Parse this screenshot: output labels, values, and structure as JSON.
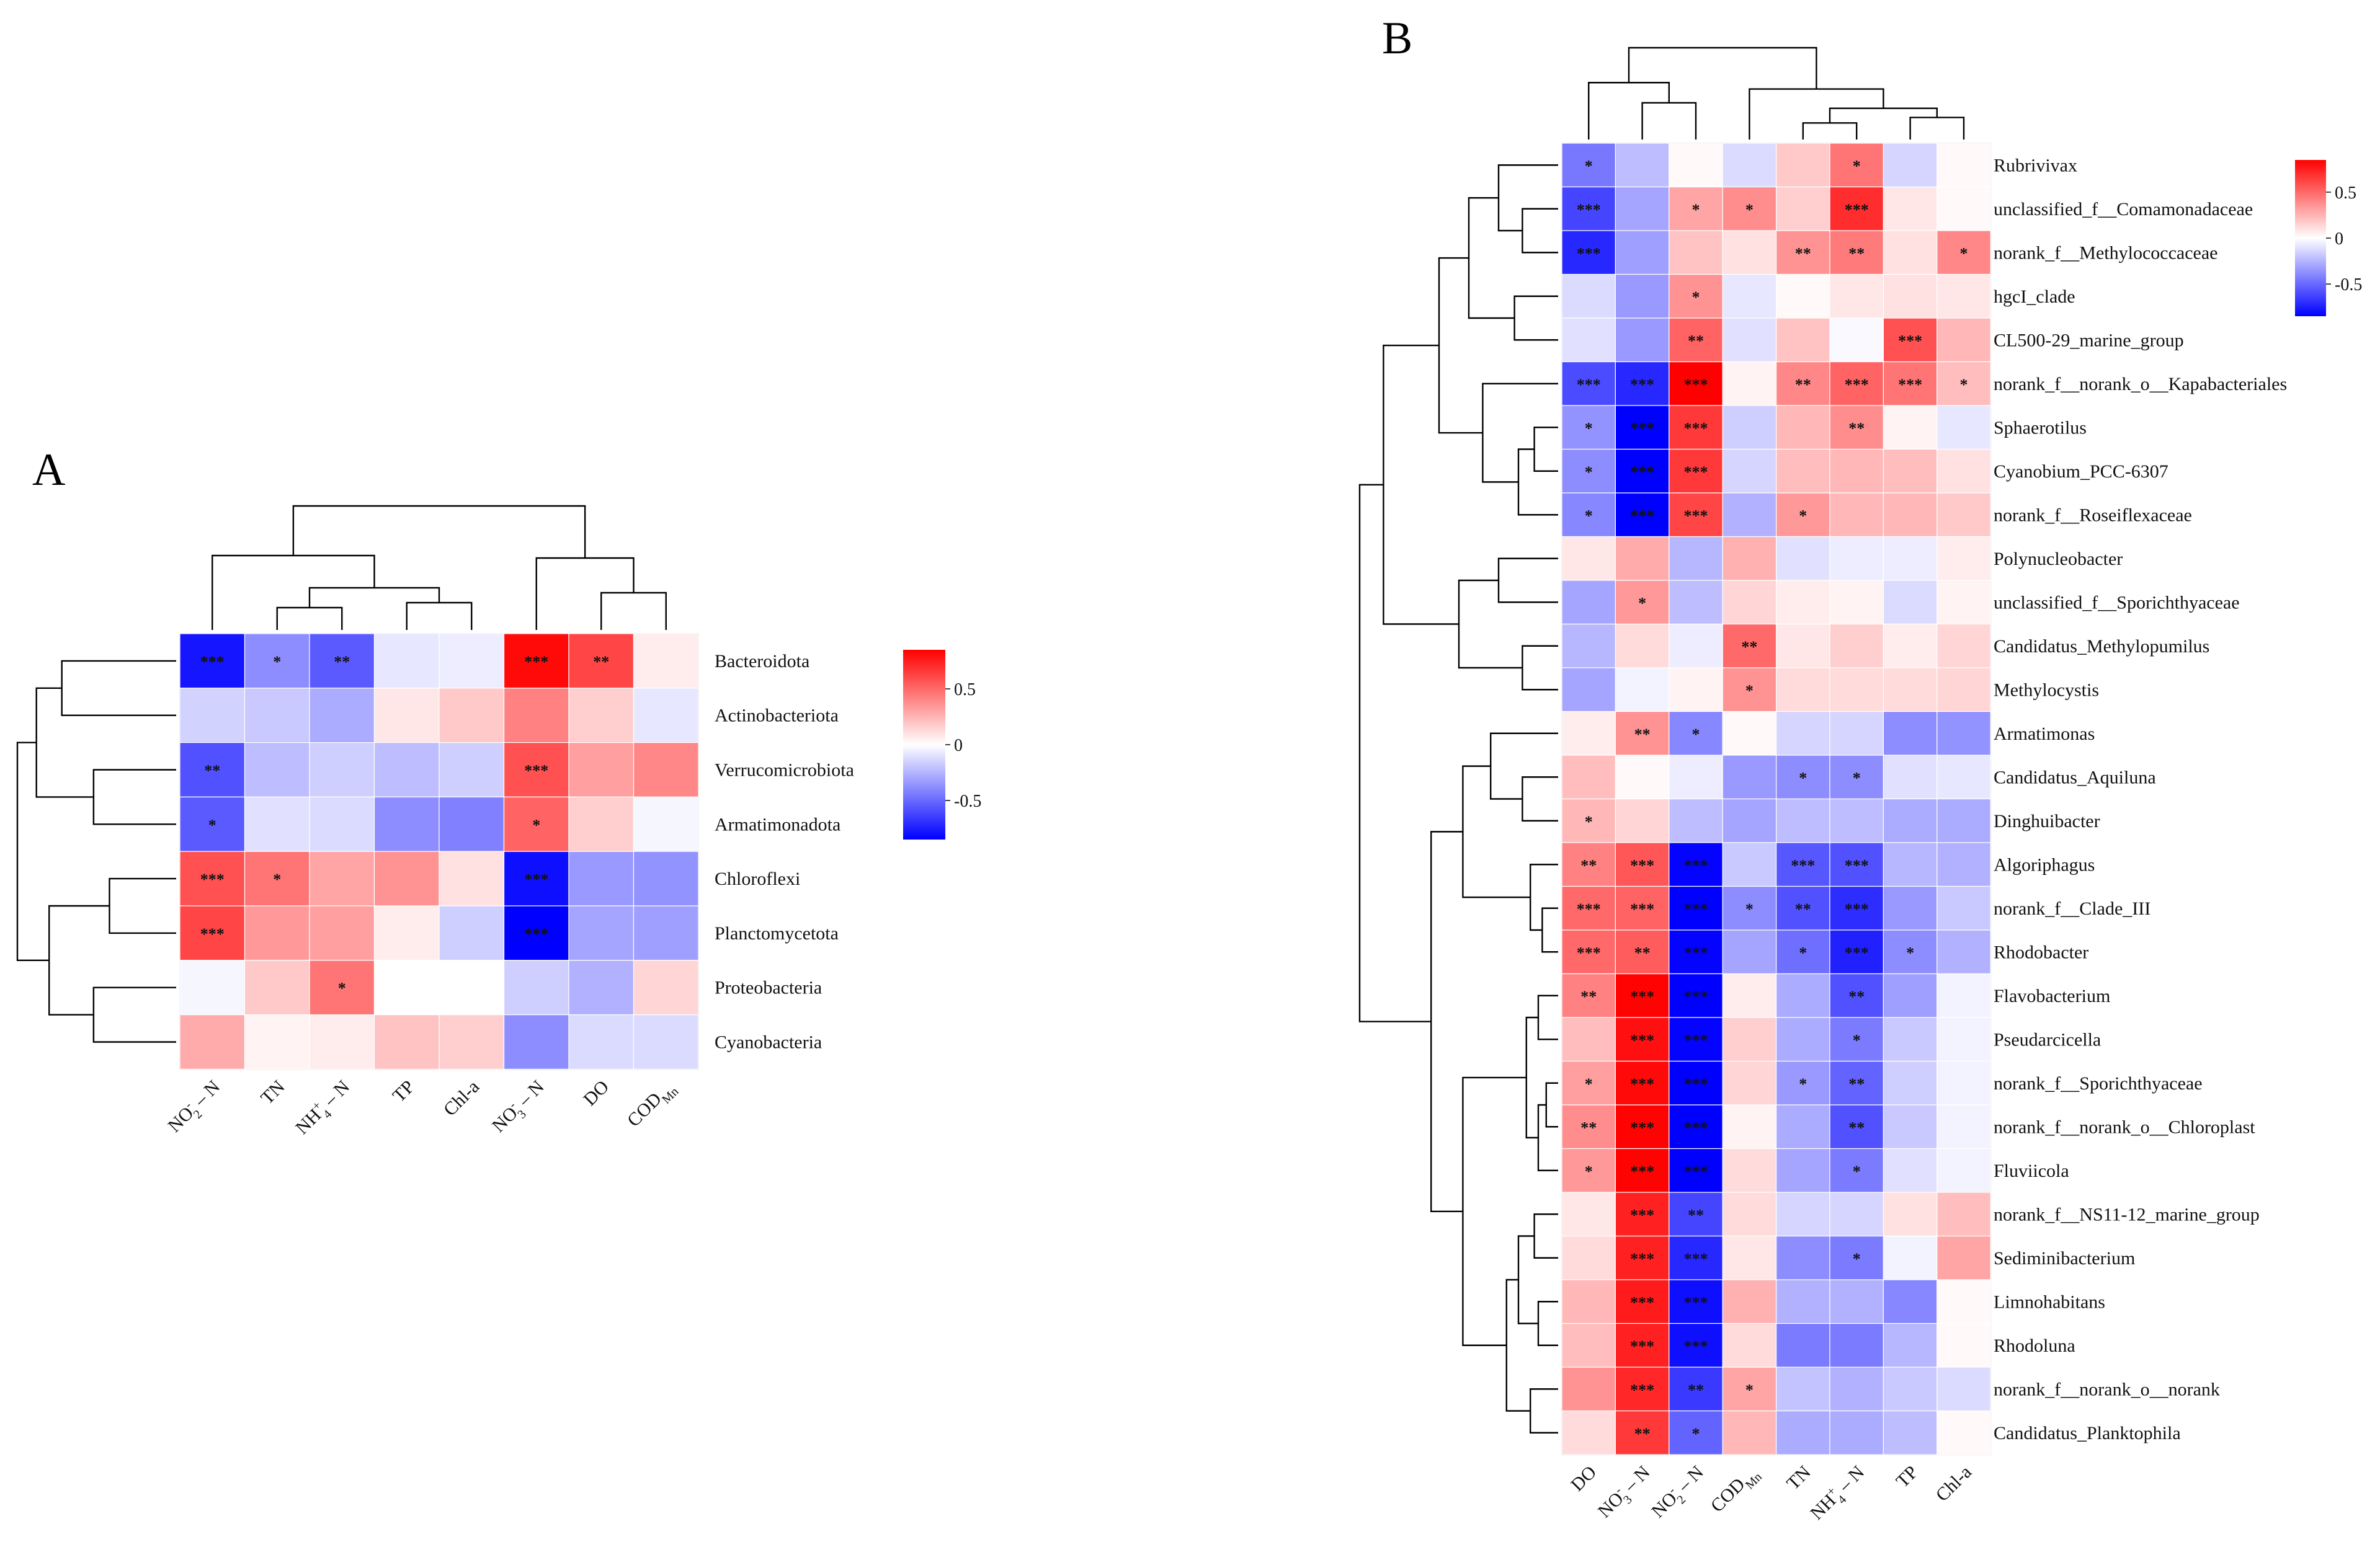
{
  "colors": {
    "low": "#0000ff",
    "mid": "#ffffff",
    "high": "#ff0000",
    "frame": "#d9d9d9"
  },
  "chart_data": [
    {
      "type": "heatmap",
      "panel": "A",
      "title": "",
      "rows": [
        "Bacteroidota",
        "Actinobacteriota",
        "Verrucomicrobiota",
        "Armatimonadota",
        "Chloroflexi",
        "Planctomycetota",
        "Proteobacteria",
        "Cyanobacteria"
      ],
      "columns": [
        {
          "main": "NO",
          "sub": "2",
          "sup": "-",
          "tail": "- N"
        },
        {
          "main": "TN"
        },
        {
          "main": "NH",
          "sub": "4",
          "sup": "+",
          "tail": "- N"
        },
        {
          "main": "TP"
        },
        {
          "main": "Chl-a"
        },
        {
          "main": "NO",
          "sub": "3",
          "sup": "-",
          "tail": "- N"
        },
        {
          "main": "DO"
        },
        {
          "main": "COD",
          "sub": "Mn"
        }
      ],
      "values": [
        [
          -0.78,
          -0.38,
          -0.55,
          -0.08,
          -0.06,
          0.82,
          0.62,
          0.06
        ],
        [
          -0.15,
          -0.18,
          -0.28,
          0.08,
          0.18,
          0.42,
          0.16,
          -0.08
        ],
        [
          -0.58,
          -0.22,
          -0.16,
          -0.22,
          -0.16,
          0.58,
          0.32,
          0.4
        ],
        [
          -0.55,
          -0.1,
          -0.12,
          -0.38,
          -0.42,
          0.52,
          0.16,
          -0.03
        ],
        [
          0.58,
          0.46,
          0.3,
          0.36,
          0.1,
          -0.8,
          -0.34,
          -0.36
        ],
        [
          0.62,
          0.34,
          0.32,
          0.06,
          -0.16,
          -0.86,
          -0.3,
          -0.32
        ],
        [
          -0.03,
          0.18,
          0.46,
          0.0,
          0.0,
          -0.16,
          -0.26,
          0.14
        ],
        [
          0.28,
          0.04,
          0.06,
          0.2,
          0.16,
          -0.38,
          -0.12,
          -0.12
        ]
      ],
      "stars": [
        [
          "***",
          "*",
          "**",
          "",
          "",
          "***",
          "**",
          ""
        ],
        [
          "",
          "",
          "",
          "",
          "",
          "",
          "",
          ""
        ],
        [
          "**",
          "",
          "",
          "",
          "",
          "***",
          "",
          ""
        ],
        [
          "*",
          "",
          "",
          "",
          "",
          "*",
          "",
          ""
        ],
        [
          "***",
          "*",
          "",
          "",
          "",
          "***",
          "",
          ""
        ],
        [
          "***",
          "",
          "",
          "",
          "",
          "***",
          "",
          ""
        ],
        [
          "",
          "",
          "*",
          "",
          "",
          "",
          "",
          ""
        ],
        [
          "",
          "",
          "",
          "",
          "",
          "",
          "",
          ""
        ]
      ],
      "legend": {
        "ticks": [
          "0.5",
          "0",
          "-0.5"
        ],
        "tick_values": [
          0.5,
          0,
          -0.5
        ],
        "range": [
          -0.85,
          0.85
        ]
      },
      "row_dendrogram": "((((Bacteroidota,Actinobacteriota),(Verrucomicrobiota,Armatimonadota))),((Chloroflexi,Planctomycetota),(Proteobacteria,Cyanobacteria)))",
      "column_dendrogram": "((NO2-N,((TN,NH4-N),(TP,Chl-a))),(NO3-N,(DO,CODMn)))"
    },
    {
      "type": "heatmap",
      "panel": "B",
      "title": "",
      "rows": [
        "Rubrivivax",
        "unclassified_f__Comamonadaceae",
        "norank_f__Methylococcaceae",
        "hgcI_clade",
        "CL500-29_marine_group",
        "norank_f__norank_o__Kapabacteriales",
        "Sphaerotilus",
        "Cyanobium_PCC-6307",
        "norank_f__Roseiflexaceae",
        "Polynucleobacter",
        "unclassified_f__Sporichthyaceae",
        "Candidatus_Methylopumilus",
        "Methylocystis",
        "Armatimonas",
        "Candidatus_Aquiluna",
        "Dinghuibacter",
        "Algoriphagus",
        "norank_f__Clade_III",
        "Rhodobacter",
        "Flavobacterium",
        "Pseudarcicella",
        "norank_f__Sporichthyaceae",
        "norank_f__norank_o__Chloroplast",
        "Fluviicola",
        "norank_f__NS11-12_marine_group",
        "Sediminibacterium",
        "Limnohabitans",
        "Rhodoluna",
        "norank_f__norank_o__norank",
        "Candidatus_Planktophila"
      ],
      "columns": [
        {
          "main": "DO"
        },
        {
          "main": "NO",
          "sub": "3",
          "sup": "-",
          "tail": "- N"
        },
        {
          "main": "NO",
          "sub": "2",
          "sup": "-",
          "tail": "- N"
        },
        {
          "main": "COD",
          "sub": "Mn"
        },
        {
          "main": "TN"
        },
        {
          "main": "NH",
          "sub": "4",
          "sup": "+",
          "tail": "- N"
        },
        {
          "main": "TP"
        },
        {
          "main": "Chl-a"
        }
      ],
      "values": [
        [
          -0.45,
          -0.22,
          0.02,
          -0.12,
          0.18,
          0.46,
          -0.14,
          0.02
        ],
        [
          -0.62,
          -0.3,
          0.3,
          0.38,
          0.16,
          0.7,
          0.08,
          0.02
        ],
        [
          -0.72,
          -0.32,
          0.2,
          0.1,
          0.36,
          0.44,
          0.1,
          0.4
        ],
        [
          -0.12,
          -0.34,
          0.36,
          -0.08,
          0.02,
          0.08,
          0.1,
          0.08
        ],
        [
          -0.1,
          -0.34,
          0.52,
          -0.1,
          0.2,
          -0.02,
          0.58,
          0.24
        ],
        [
          -0.6,
          -0.72,
          0.92,
          0.04,
          0.4,
          0.52,
          0.46,
          0.22
        ],
        [
          -0.36,
          -0.86,
          0.66,
          -0.16,
          0.24,
          0.38,
          0.04,
          -0.08
        ],
        [
          -0.38,
          -0.86,
          0.66,
          -0.14,
          0.22,
          0.24,
          0.22,
          0.1
        ],
        [
          -0.4,
          -0.86,
          0.62,
          -0.26,
          0.34,
          0.24,
          0.24,
          0.18
        ],
        [
          0.08,
          0.28,
          -0.24,
          0.26,
          -0.1,
          -0.06,
          -0.06,
          0.06
        ],
        [
          -0.3,
          0.34,
          -0.22,
          0.14,
          0.06,
          0.04,
          -0.12,
          0.04
        ],
        [
          -0.24,
          0.12,
          -0.06,
          0.5,
          0.08,
          0.16,
          0.06,
          0.14
        ],
        [
          -0.3,
          -0.04,
          0.04,
          0.36,
          0.12,
          0.12,
          0.12,
          0.14
        ],
        [
          0.06,
          0.36,
          -0.4,
          0.02,
          -0.14,
          -0.14,
          -0.38,
          -0.36
        ],
        [
          0.22,
          0.02,
          -0.06,
          -0.34,
          -0.38,
          -0.38,
          -0.1,
          -0.08
        ],
        [
          0.24,
          0.14,
          -0.22,
          -0.3,
          -0.22,
          -0.22,
          -0.28,
          -0.28
        ],
        [
          0.42,
          0.56,
          -0.84,
          -0.18,
          -0.56,
          -0.58,
          -0.24,
          -0.26
        ],
        [
          0.5,
          0.52,
          -0.86,
          -0.38,
          -0.58,
          -0.7,
          -0.34,
          -0.18
        ],
        [
          0.5,
          0.54,
          -0.84,
          -0.3,
          -0.48,
          -0.74,
          -0.38,
          -0.26
        ],
        [
          0.42,
          0.84,
          -0.86,
          0.06,
          -0.28,
          -0.58,
          -0.32,
          -0.04
        ],
        [
          0.22,
          0.8,
          -0.84,
          0.16,
          -0.28,
          -0.44,
          -0.18,
          -0.04
        ],
        [
          0.32,
          0.82,
          -0.86,
          0.14,
          -0.34,
          -0.52,
          -0.16,
          -0.04
        ],
        [
          0.38,
          0.84,
          -0.86,
          0.04,
          -0.28,
          -0.58,
          -0.18,
          -0.04
        ],
        [
          0.34,
          0.84,
          -0.86,
          0.12,
          -0.3,
          -0.44,
          -0.1,
          -0.04
        ],
        [
          0.08,
          0.74,
          -0.62,
          0.12,
          -0.14,
          -0.14,
          0.1,
          0.22
        ],
        [
          0.12,
          0.74,
          -0.72,
          0.08,
          -0.38,
          -0.44,
          -0.04,
          0.3
        ],
        [
          0.24,
          0.76,
          -0.8,
          0.26,
          -0.26,
          -0.26,
          -0.4,
          0.02
        ],
        [
          0.22,
          0.74,
          -0.8,
          0.12,
          -0.44,
          -0.44,
          -0.24,
          0.02
        ],
        [
          0.36,
          0.72,
          -0.66,
          0.3,
          -0.2,
          -0.26,
          -0.18,
          -0.12
        ],
        [
          0.12,
          0.66,
          -0.52,
          0.24,
          -0.28,
          -0.28,
          -0.22,
          0.02
        ]
      ],
      "stars": [
        [
          "*",
          "",
          "",
          "",
          "",
          "*",
          "",
          ""
        ],
        [
          "***",
          "",
          "*",
          "*",
          "",
          "***",
          "",
          ""
        ],
        [
          "***",
          "",
          "",
          "",
          "**",
          "**",
          "",
          "*"
        ],
        [
          "",
          "",
          "*",
          "",
          "",
          "",
          "",
          ""
        ],
        [
          "",
          "",
          "**",
          "",
          "",
          "",
          "***",
          ""
        ],
        [
          "***",
          "***",
          "***",
          "",
          "**",
          "***",
          "***",
          "*"
        ],
        [
          "*",
          "***",
          "***",
          "",
          "",
          "**",
          "",
          ""
        ],
        [
          "*",
          "***",
          "***",
          "",
          "",
          "",
          "",
          ""
        ],
        [
          "*",
          "***",
          "***",
          "",
          "*",
          "",
          "",
          ""
        ],
        [
          "",
          "",
          "",
          "",
          "",
          "",
          "",
          ""
        ],
        [
          "",
          "*",
          "",
          "",
          "",
          "",
          "",
          ""
        ],
        [
          "",
          "",
          "",
          "**",
          "",
          "",
          "",
          ""
        ],
        [
          "",
          "",
          "",
          "*",
          "",
          "",
          "",
          ""
        ],
        [
          "",
          "**",
          "*",
          "",
          "",
          "",
          "",
          ""
        ],
        [
          "",
          "",
          "",
          "",
          "*",
          "*",
          "",
          ""
        ],
        [
          "*",
          "",
          "",
          "",
          "",
          "",
          "",
          ""
        ],
        [
          "**",
          "***",
          "***",
          "",
          "***",
          "***",
          "",
          ""
        ],
        [
          "***",
          "***",
          "***",
          "*",
          "**",
          "***",
          "",
          ""
        ],
        [
          "***",
          "**",
          "***",
          "",
          "*",
          "***",
          "*",
          ""
        ],
        [
          "**",
          "***",
          "***",
          "",
          "",
          "**",
          "",
          ""
        ],
        [
          "",
          "***",
          "***",
          "",
          "",
          "*",
          "",
          ""
        ],
        [
          "*",
          "***",
          "***",
          "",
          "*",
          "**",
          "",
          ""
        ],
        [
          "**",
          "***",
          "***",
          "",
          "",
          "**",
          "",
          ""
        ],
        [
          "*",
          "***",
          "***",
          "",
          "",
          "*",
          "",
          ""
        ],
        [
          "",
          "***",
          "**",
          "",
          "",
          "",
          "",
          ""
        ],
        [
          "",
          "***",
          "***",
          "",
          "",
          "*",
          "",
          ""
        ],
        [
          "",
          "***",
          "***",
          "",
          "",
          "",
          "",
          ""
        ],
        [
          "",
          "***",
          "***",
          "",
          "",
          "",
          "",
          ""
        ],
        [
          "",
          "***",
          "**",
          "*",
          "",
          "",
          "",
          ""
        ],
        [
          "",
          "**",
          "*",
          "",
          "",
          "",
          "",
          ""
        ]
      ],
      "legend": {
        "ticks": [
          "0.5",
          "0",
          "-0.5"
        ],
        "tick_values": [
          0.5,
          0,
          -0.5
        ],
        "range": [
          -0.85,
          0.85
        ]
      },
      "row_dendrogram": "hierarchical clustering of the 30 genera",
      "column_dendrogram": "((DO,(NO3-N,NO2-N)),(CODMn,((TN,NH4-N),(TP,Chl-a))))"
    }
  ]
}
